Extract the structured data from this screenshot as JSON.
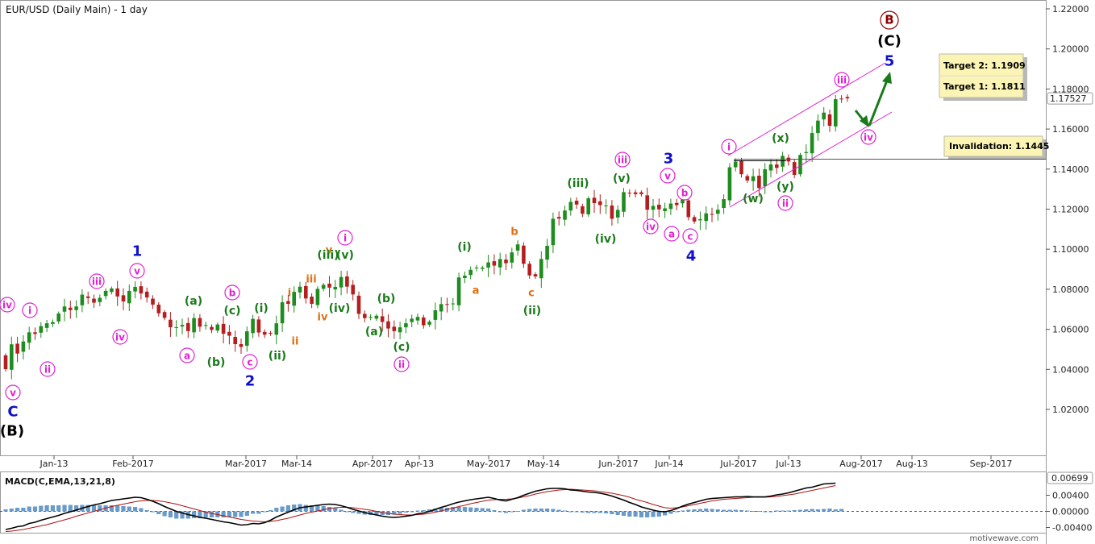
{
  "chart_title": "EUR/USD (Daily Main) - 1 day",
  "watermark": "motivewave.com",
  "colors": {
    "up": "#1e8c1e",
    "down": "#b41e1e",
    "blue": "#1010c8",
    "green": "#1a7a1a",
    "magenta": "#e020d0",
    "orange": "#e07010",
    "darkred": "#8b0000",
    "black": "#000000",
    "macd_line": "#000000",
    "signal_line": "#b01010",
    "hist": "#6a9ac8"
  },
  "chart_data": [
    {
      "type": "candlestick",
      "title": "EUR/USD (Daily Main) - 1 day",
      "ylim": [
        1.0,
        1.22
      ],
      "x_ticks": [
        "Jan-13",
        "Feb-2017",
        "Mar-2017",
        "Mar-14",
        "Apr-2017",
        "Apr-13",
        "May-2017",
        "May-14",
        "Jun-2017",
        "Jun-14",
        "Jul-2017",
        "Jul-13",
        "Aug-2017",
        "Aug-13",
        "Sep-2017"
      ],
      "y_ticks": [
        "1.22000",
        "1.20000",
        "1.18000",
        "1.16000",
        "1.14000",
        "1.12000",
        "1.10000",
        "1.08000",
        "1.06000",
        "1.04000",
        "1.02000"
      ],
      "y_tick_values": [
        1.22,
        1.2,
        1.18,
        1.16,
        1.14,
        1.12,
        1.1,
        1.08,
        1.06,
        1.04,
        1.02
      ],
      "last_price_label": "1.17527",
      "last_price": 1.17527,
      "closes": [
        1.0401,
        1.0525,
        1.0479,
        1.0539,
        1.0585,
        1.0577,
        1.0616,
        1.063,
        1.0636,
        1.0679,
        1.0714,
        1.0696,
        1.0714,
        1.0773,
        1.0756,
        1.0733,
        1.0757,
        1.0792,
        1.0804,
        1.0764,
        1.0739,
        1.0792,
        1.0812,
        1.0779,
        1.0759,
        1.0723,
        1.068,
        1.0657,
        1.061,
        1.0611,
        1.0622,
        1.0591,
        1.0656,
        1.0613,
        1.0621,
        1.0597,
        1.0624,
        1.0578,
        1.0568,
        1.0526,
        1.0512,
        1.059,
        1.0652,
        1.0584,
        1.0573,
        1.0579,
        1.063,
        1.0735,
        1.0727,
        1.0787,
        1.0813,
        1.0754,
        1.0727,
        1.0802,
        1.0822,
        1.0808,
        1.0812,
        1.0861,
        1.0813,
        1.0774,
        1.0677,
        1.0656,
        1.0662,
        1.0668,
        1.0637,
        1.0604,
        1.0591,
        1.061,
        1.063,
        1.0653,
        1.0662,
        1.062,
        1.0638,
        1.0695,
        1.0726,
        1.0723,
        1.0729,
        1.0859,
        1.0868,
        1.0897,
        1.0908,
        1.0908,
        1.0934,
        1.0918,
        1.0951,
        1.093,
        1.0984,
        1.1024,
        1.0927,
        1.0869,
        1.0864,
        1.0951,
        1.1017,
        1.1152,
        1.1153,
        1.1193,
        1.1236,
        1.1223,
        1.1177,
        1.1254,
        1.123,
        1.122,
        1.1218,
        1.1152,
        1.1196,
        1.1285,
        1.1281,
        1.1275,
        1.1275,
        1.1197,
        1.1216,
        1.1199,
        1.1204,
        1.1228,
        1.122,
        1.125,
        1.116,
        1.1138,
        1.115,
        1.1179,
        1.1174,
        1.1197,
        1.125,
        1.1409,
        1.1437,
        1.1374,
        1.1343,
        1.1364,
        1.1305,
        1.1399,
        1.1423,
        1.1406,
        1.1466,
        1.1438,
        1.1371,
        1.1471,
        1.1485,
        1.158,
        1.1642,
        1.1682,
        1.1616,
        1.1749,
        1.1751,
        1.1753
      ],
      "annotations": [
        {
          "text": "Target 2:  1.1909"
        },
        {
          "text": "Target 1:  1.1811"
        },
        {
          "text": "Invalidation:  1.1445"
        }
      ]
    },
    {
      "type": "line",
      "title": "MACD(C,EMA,13,21,8)",
      "last_value_label": "0.00699",
      "y_ticks": [
        "0.00400",
        "0.00000",
        "-0.00400"
      ],
      "series": [
        {
          "values": [
            -0.0045,
            -0.0042,
            -0.0038,
            -0.0036,
            -0.003,
            -0.0027,
            -0.0022,
            -0.0018,
            -0.0014,
            -0.001,
            -0.0005,
            -0.0001,
            0.0003,
            0.0008,
            0.0012,
            0.0016,
            0.0019,
            0.0023,
            0.0027,
            0.0029,
            0.0031,
            0.0033,
            0.0035,
            0.0034,
            0.003,
            0.0025,
            0.0019,
            0.0012,
            0.0006,
            0.0,
            -0.0004,
            -0.0008,
            -0.0011,
            -0.0015,
            -0.0017,
            -0.002,
            -0.0023,
            -0.0026,
            -0.0028,
            -0.0031,
            -0.0034,
            -0.0033,
            -0.003,
            -0.0031,
            -0.0028,
            -0.0022,
            -0.0014,
            -0.0008,
            -0.0002,
            0.0004,
            0.0009,
            0.0011,
            0.0013,
            0.0015,
            0.0017,
            0.0018,
            0.0017,
            0.0014,
            0.001,
            0.0005,
            0.0001,
            -0.0003,
            -0.0006,
            -0.0009,
            -0.0012,
            -0.0014,
            -0.0015,
            -0.0014,
            -0.0012,
            -0.001,
            -0.0006,
            -0.0004,
            0.0,
            0.0005,
            0.001,
            0.0014,
            0.0019,
            0.0023,
            0.0026,
            0.0029,
            0.0031,
            0.0033,
            0.0035,
            0.0032,
            0.0028,
            0.0026,
            0.003,
            0.0034,
            0.004,
            0.0045,
            0.005,
            0.0053,
            0.0056,
            0.0057,
            0.0057,
            0.0056,
            0.0053,
            0.0052,
            0.005,
            0.0048,
            0.0047,
            0.0045,
            0.0042,
            0.0038,
            0.0033,
            0.0028,
            0.0022,
            0.0017,
            0.0011,
            0.0007,
            0.0003,
            0.0,
            -0.0001,
            0.0002,
            0.0007,
            0.0013,
            0.0018,
            0.0022,
            0.0026,
            0.003,
            0.0032,
            0.0033,
            0.0034,
            0.0035,
            0.0036,
            0.0036,
            0.0037,
            0.0036,
            0.0036,
            0.0036,
            0.0038,
            0.0041,
            0.0043,
            0.0046,
            0.005,
            0.0054,
            0.0058,
            0.006,
            0.0064,
            0.0068,
            0.0069,
            0.007
          ]
        },
        {
          "values": [
            -0.005,
            -0.0049,
            -0.0047,
            -0.0045,
            -0.0042,
            -0.0039,
            -0.0036,
            -0.0033,
            -0.0029,
            -0.0025,
            -0.0021,
            -0.0017,
            -0.0012,
            -0.0008,
            -0.0004,
            0.0,
            0.0004,
            0.0008,
            0.0012,
            0.0015,
            0.0018,
            0.0021,
            0.0024,
            0.0026,
            0.0027,
            0.0027,
            0.0026,
            0.0024,
            0.0021,
            0.0018,
            0.0014,
            0.001,
            0.0006,
            0.0002,
            -0.0002,
            -0.0005,
            -0.0008,
            -0.0011,
            -0.0014,
            -0.0017,
            -0.002,
            -0.0022,
            -0.0024,
            -0.0025,
            -0.0026,
            -0.0025,
            -0.0023,
            -0.002,
            -0.0017,
            -0.0013,
            -0.0009,
            -0.0005,
            -0.0002,
            0.0001,
            0.0004,
            0.0007,
            0.0009,
            0.001,
            0.001,
            0.0009,
            0.0007,
            0.0005,
            0.0003,
            0.0,
            -0.0003,
            -0.0005,
            -0.0007,
            -0.0008,
            -0.0009,
            -0.0009,
            -0.0008,
            -0.0007,
            -0.0005,
            -0.0002,
            0.0001,
            0.0005,
            0.0008,
            0.0012,
            0.0015,
            0.0019,
            0.0022,
            0.0025,
            0.0028,
            0.0029,
            0.003,
            0.003,
            0.0031,
            0.0033,
            0.0036,
            0.0039,
            0.0043,
            0.0046,
            0.0049,
            0.0051,
            0.0053,
            0.0054,
            0.0055,
            0.0054,
            0.0053,
            0.0052,
            0.0051,
            0.0049,
            0.0047,
            0.0045,
            0.0042,
            0.0039,
            0.0035,
            0.003,
            0.0026,
            0.0022,
            0.0017,
            0.0013,
            0.0009,
            0.0008,
            0.0009,
            0.0011,
            0.0014,
            0.0017,
            0.002,
            0.0023,
            0.0026,
            0.0028,
            0.003,
            0.0031,
            0.0032,
            0.0033,
            0.0034,
            0.0035,
            0.0035,
            0.0035,
            0.0036,
            0.0037,
            0.0039,
            0.0041,
            0.0043,
            0.0046,
            0.0049,
            0.0052,
            0.0055,
            0.0058,
            0.0061,
            0.0064
          ]
        }
      ],
      "histogram": [
        0.0005,
        0.0007,
        0.0009,
        0.0009,
        0.0012,
        0.0012,
        0.0014,
        0.0015,
        0.0015,
        0.0015,
        0.0016,
        0.0016,
        0.0015,
        0.0016,
        0.0016,
        0.0016,
        0.0015,
        0.0015,
        0.0015,
        0.0014,
        0.0013,
        0.0012,
        0.0011,
        0.0008,
        0.0003,
        -0.0002,
        -0.0007,
        -0.0012,
        -0.0015,
        -0.0018,
        -0.0018,
        -0.0018,
        -0.0017,
        -0.0017,
        -0.0015,
        -0.0015,
        -0.0015,
        -0.0015,
        -0.0014,
        -0.0014,
        -0.0014,
        -0.0011,
        -0.0006,
        -0.0006,
        -0.0002,
        0.0003,
        0.0009,
        0.0012,
        0.0015,
        0.0017,
        0.0018,
        0.0016,
        0.0015,
        0.0014,
        0.0013,
        0.0011,
        0.0008,
        0.0004,
        0.0,
        -0.0004,
        -0.0006,
        -0.0008,
        -0.0009,
        -0.0009,
        -0.0009,
        -0.0009,
        -0.0008,
        -0.0006,
        -0.0003,
        -0.0001,
        0.0002,
        0.0003,
        0.0005,
        0.0007,
        0.0009,
        0.0009,
        0.0011,
        0.0011,
        0.0011,
        0.001,
        0.0009,
        0.0008,
        0.0007,
        0.0003,
        -0.0002,
        -0.0004,
        -0.0001,
        0.0001,
        0.0004,
        0.0006,
        0.0007,
        0.0007,
        0.0007,
        0.0006,
        0.0004,
        0.0002,
        -0.0002,
        -0.0002,
        -0.0003,
        -0.0004,
        -0.0004,
        -0.0004,
        -0.0005,
        -0.0007,
        -0.0009,
        -0.0011,
        -0.0013,
        -0.0013,
        -0.0015,
        -0.0015,
        -0.0014,
        -0.0013,
        -0.001,
        -0.0006,
        -0.0002,
        0.0002,
        0.0004,
        0.0005,
        0.0006,
        0.0007,
        0.0006,
        0.0005,
        0.0004,
        0.0004,
        0.0004,
        0.0003,
        0.0002,
        0.0001,
        0.0001,
        0.0,
        0.0,
        0.0002,
        0.0002,
        0.0002,
        0.0003,
        0.0004,
        0.0005,
        0.0006,
        0.0005,
        0.0006,
        0.0007,
        0.0005,
        0.0006
      ]
    }
  ],
  "wave_labels": [
    {
      "text": "iv",
      "style": "circle",
      "color": "magenta"
    },
    {
      "text": "i",
      "style": "circle",
      "color": "magenta"
    },
    {
      "text": "ii",
      "style": "circle",
      "color": "magenta"
    },
    {
      "text": "v",
      "style": "circle",
      "color": "magenta"
    },
    {
      "text": "C",
      "style": "plain",
      "color": "blue"
    },
    {
      "text": "(B)",
      "style": "plain",
      "color": "black"
    },
    {
      "text": "iii",
      "style": "circle",
      "color": "magenta"
    },
    {
      "text": "iv",
      "style": "circle",
      "color": "magenta"
    },
    {
      "text": "v",
      "style": "circle",
      "color": "magenta"
    },
    {
      "text": "1",
      "style": "plain",
      "color": "blue"
    },
    {
      "text": "(a)",
      "style": "plain",
      "color": "green"
    },
    {
      "text": "a",
      "style": "circle",
      "color": "magenta"
    },
    {
      "text": "b",
      "style": "circle",
      "color": "magenta"
    },
    {
      "text": "(c)",
      "style": "plain",
      "color": "green"
    },
    {
      "text": "(b)",
      "style": "plain",
      "color": "green"
    },
    {
      "text": "c",
      "style": "circle",
      "color": "magenta"
    },
    {
      "text": "2",
      "style": "plain",
      "color": "blue"
    },
    {
      "text": "(i)",
      "style": "plain",
      "color": "green"
    },
    {
      "text": "(ii)",
      "style": "plain",
      "color": "green"
    },
    {
      "text": "i",
      "style": "plain",
      "color": "orange"
    },
    {
      "text": "ii",
      "style": "plain",
      "color": "orange"
    },
    {
      "text": "iii",
      "style": "plain",
      "color": "orange"
    },
    {
      "text": "iv",
      "style": "plain",
      "color": "orange"
    },
    {
      "text": "v",
      "style": "plain",
      "color": "orange"
    },
    {
      "text": "(iii)",
      "style": "plain",
      "color": "green"
    },
    {
      "text": "(v)",
      "style": "plain",
      "color": "green"
    },
    {
      "text": "(iv)",
      "style": "plain",
      "color": "green"
    },
    {
      "text": "i",
      "style": "circle",
      "color": "magenta"
    },
    {
      "text": "(b)",
      "style": "plain",
      "color": "green"
    },
    {
      "text": "(a)",
      "style": "plain",
      "color": "green"
    },
    {
      "text": "(c)",
      "style": "plain",
      "color": "green"
    },
    {
      "text": "ii",
      "style": "circle",
      "color": "magenta"
    },
    {
      "text": "(i)",
      "style": "plain",
      "color": "green"
    },
    {
      "text": "a",
      "style": "plain",
      "color": "orange"
    },
    {
      "text": "b",
      "style": "plain",
      "color": "orange"
    },
    {
      "text": "c",
      "style": "plain",
      "color": "orange"
    },
    {
      "text": "(ii)",
      "style": "plain",
      "color": "green"
    },
    {
      "text": "(iii)",
      "style": "plain",
      "color": "green"
    },
    {
      "text": "(v)",
      "style": "plain",
      "color": "green"
    },
    {
      "text": "(iv)",
      "style": "plain",
      "color": "green"
    },
    {
      "text": "iii",
      "style": "circle",
      "color": "magenta"
    },
    {
      "text": "iv",
      "style": "circle",
      "color": "magenta"
    },
    {
      "text": "3",
      "style": "plain",
      "color": "blue"
    },
    {
      "text": "v",
      "style": "circle",
      "color": "magenta"
    },
    {
      "text": "b",
      "style": "circle",
      "color": "magenta"
    },
    {
      "text": "a",
      "style": "circle",
      "color": "magenta"
    },
    {
      "text": "c",
      "style": "circle",
      "color": "magenta"
    },
    {
      "text": "4",
      "style": "plain",
      "color": "blue"
    },
    {
      "text": "i",
      "style": "circle",
      "color": "magenta"
    },
    {
      "text": "(w)",
      "style": "plain",
      "color": "green"
    },
    {
      "text": "(x)",
      "style": "plain",
      "color": "green"
    },
    {
      "text": "(y)",
      "style": "plain",
      "color": "green"
    },
    {
      "text": "ii",
      "style": "circle",
      "color": "magenta"
    },
    {
      "text": "iii",
      "style": "circle",
      "color": "magenta"
    },
    {
      "text": "iv",
      "style": "circle",
      "color": "magenta"
    },
    {
      "text": "5",
      "style": "plain",
      "color": "blue"
    },
    {
      "text": "(C)",
      "style": "plain",
      "color": "black"
    },
    {
      "text": "B",
      "style": "circle",
      "color": "darkred"
    }
  ]
}
